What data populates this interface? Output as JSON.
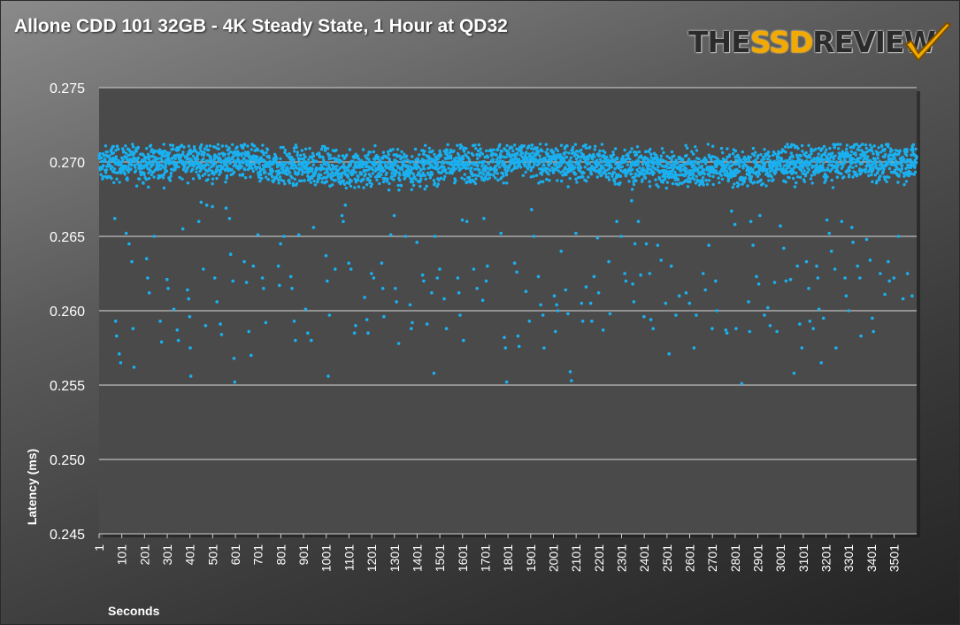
{
  "title": "Allone CDD 101 32GB - 4K Steady State, 1 Hour at QD32",
  "logo": {
    "pre": "THE",
    "accent": "SSD",
    "post": "REVIEW"
  },
  "colors": {
    "points": "#1ab0f0",
    "plot_bg": "#4a4a4a",
    "grid": "#bdbdbd"
  },
  "chart_data": {
    "type": "scatter",
    "xlabel": "Seconds",
    "ylabel": "Latency (ms)",
    "xlim": [
      1,
      3600
    ],
    "ylim": [
      0.245,
      0.275
    ],
    "grid": true,
    "y_ticks": [
      "0.245",
      "0.250",
      "0.255",
      "0.260",
      "0.265",
      "0.270",
      "0.275"
    ],
    "x_tick_labels": [
      "1",
      "101",
      "201",
      "301",
      "401",
      "501",
      "601",
      "701",
      "801",
      "901",
      "1001",
      "1101",
      "1201",
      "1301",
      "1401",
      "1501",
      "1601",
      "1701",
      "1801",
      "1901",
      "2001",
      "2101",
      "2201",
      "2301",
      "2401",
      "2501",
      "2601",
      "2701",
      "2801",
      "2901",
      "3001",
      "3101",
      "3201",
      "3301",
      "3401",
      "3501"
    ],
    "series": [
      {
        "description": "Latency samples per second over one hour",
        "n_points": 3600,
        "main_band": {
          "center": 0.2698,
          "min": 0.2685,
          "max": 0.2712
        },
        "outliers": [
          [
            70,
            0.2662
          ],
          [
            74,
            0.2593
          ],
          [
            78,
            0.2583
          ],
          [
            90,
            0.2571
          ],
          [
            96,
            0.2565
          ],
          [
            120,
            0.2652
          ],
          [
            133,
            0.2645
          ],
          [
            145,
            0.2633
          ],
          [
            150,
            0.2588
          ],
          [
            155,
            0.2562
          ],
          [
            210,
            0.2635
          ],
          [
            215,
            0.2622
          ],
          [
            222,
            0.2612
          ],
          [
            244,
            0.265
          ],
          [
            270,
            0.2593
          ],
          [
            276,
            0.2579
          ],
          [
            300,
            0.2621
          ],
          [
            305,
            0.2615
          ],
          [
            330,
            0.2601
          ],
          [
            345,
            0.2587
          ],
          [
            350,
            0.258
          ],
          [
            370,
            0.2655
          ],
          [
            390,
            0.2614
          ],
          [
            395,
            0.2608
          ],
          [
            400,
            0.2596
          ],
          [
            402,
            0.2575
          ],
          [
            405,
            0.2556
          ],
          [
            440,
            0.266
          ],
          [
            450,
            0.2673
          ],
          [
            460,
            0.2628
          ],
          [
            470,
            0.259
          ],
          [
            475,
            0.2671
          ],
          [
            500,
            0.267
          ],
          [
            510,
            0.2622
          ],
          [
            520,
            0.2606
          ],
          [
            535,
            0.2591
          ],
          [
            540,
            0.2584
          ],
          [
            560,
            0.2669
          ],
          [
            575,
            0.2662
          ],
          [
            580,
            0.2638
          ],
          [
            590,
            0.262
          ],
          [
            595,
            0.2568
          ],
          [
            598,
            0.2552
          ],
          [
            640,
            0.2633
          ],
          [
            650,
            0.2619
          ],
          [
            660,
            0.2586
          ],
          [
            670,
            0.257
          ],
          [
            680,
            0.263
          ],
          [
            700,
            0.2651
          ],
          [
            720,
            0.2622
          ],
          [
            725,
            0.2615
          ],
          [
            735,
            0.2592
          ],
          [
            790,
            0.263
          ],
          [
            795,
            0.2617
          ],
          [
            800,
            0.2645
          ],
          [
            815,
            0.265
          ],
          [
            845,
            0.2623
          ],
          [
            850,
            0.2615
          ],
          [
            860,
            0.2593
          ],
          [
            865,
            0.258
          ],
          [
            880,
            0.2651
          ],
          [
            910,
            0.2601
          ],
          [
            920,
            0.2585
          ],
          [
            935,
            0.258
          ],
          [
            945,
            0.2656
          ],
          [
            1000,
            0.2637
          ],
          [
            1005,
            0.262
          ],
          [
            1010,
            0.2556
          ],
          [
            1015,
            0.2597
          ],
          [
            1040,
            0.2628
          ],
          [
            1070,
            0.2664
          ],
          [
            1076,
            0.266
          ],
          [
            1085,
            0.2671
          ],
          [
            1100,
            0.2632
          ],
          [
            1110,
            0.2628
          ],
          [
            1125,
            0.2585
          ],
          [
            1130,
            0.259
          ],
          [
            1170,
            0.2609
          ],
          [
            1180,
            0.2594
          ],
          [
            1185,
            0.2585
          ],
          [
            1200,
            0.2625
          ],
          [
            1210,
            0.2622
          ],
          [
            1245,
            0.2632
          ],
          [
            1250,
            0.2615
          ],
          [
            1255,
            0.2596
          ],
          [
            1285,
            0.2651
          ],
          [
            1300,
            0.2664
          ],
          [
            1305,
            0.2615
          ],
          [
            1310,
            0.2606
          ],
          [
            1320,
            0.2578
          ],
          [
            1350,
            0.265
          ],
          [
            1370,
            0.2604
          ],
          [
            1375,
            0.2588
          ],
          [
            1380,
            0.2592
          ],
          [
            1400,
            0.2646
          ],
          [
            1425,
            0.2624
          ],
          [
            1430,
            0.262
          ],
          [
            1445,
            0.2591
          ],
          [
            1465,
            0.2612
          ],
          [
            1475,
            0.2558
          ],
          [
            1480,
            0.265
          ],
          [
            1490,
            0.2622
          ],
          [
            1500,
            0.2628
          ],
          [
            1520,
            0.2608
          ],
          [
            1530,
            0.2588
          ],
          [
            1580,
            0.2622
          ],
          [
            1585,
            0.2612
          ],
          [
            1590,
            0.2597
          ],
          [
            1600,
            0.2661
          ],
          [
            1605,
            0.258
          ],
          [
            1620,
            0.266
          ],
          [
            1650,
            0.2628
          ],
          [
            1665,
            0.2615
          ],
          [
            1690,
            0.2607
          ],
          [
            1695,
            0.2662
          ],
          [
            1705,
            0.262
          ],
          [
            1710,
            0.263
          ],
          [
            1770,
            0.2652
          ],
          [
            1785,
            0.2582
          ],
          [
            1790,
            0.2575
          ],
          [
            1795,
            0.2552
          ],
          [
            1830,
            0.2632
          ],
          [
            1840,
            0.2626
          ],
          [
            1845,
            0.2583
          ],
          [
            1850,
            0.2576
          ],
          [
            1880,
            0.2613
          ],
          [
            1895,
            0.2593
          ],
          [
            1905,
            0.2668
          ],
          [
            1915,
            0.265
          ],
          [
            1935,
            0.2623
          ],
          [
            1945,
            0.2604
          ],
          [
            1955,
            0.2597
          ],
          [
            1960,
            0.2575
          ],
          [
            2005,
            0.261
          ],
          [
            2010,
            0.2586
          ],
          [
            2015,
            0.2604
          ],
          [
            2020,
            0.26
          ],
          [
            2035,
            0.264
          ],
          [
            2055,
            0.2614
          ],
          [
            2065,
            0.2598
          ],
          [
            2075,
            0.2559
          ],
          [
            2080,
            0.2553
          ],
          [
            2100,
            0.2652
          ],
          [
            2125,
            0.2605
          ],
          [
            2130,
            0.2593
          ],
          [
            2145,
            0.2616
          ],
          [
            2165,
            0.2605
          ],
          [
            2170,
            0.2593
          ],
          [
            2180,
            0.2623
          ],
          [
            2195,
            0.2649
          ],
          [
            2200,
            0.2612
          ],
          [
            2220,
            0.2587
          ],
          [
            2245,
            0.2633
          ],
          [
            2250,
            0.2598
          ],
          [
            2280,
            0.266
          ],
          [
            2300,
            0.265
          ],
          [
            2315,
            0.2625
          ],
          [
            2320,
            0.262
          ],
          [
            2345,
            0.2674
          ],
          [
            2350,
            0.2618
          ],
          [
            2355,
            0.2606
          ],
          [
            2360,
            0.2645
          ],
          [
            2375,
            0.266
          ],
          [
            2385,
            0.2624
          ],
          [
            2400,
            0.2596
          ],
          [
            2410,
            0.2645
          ],
          [
            2425,
            0.2625
          ],
          [
            2430,
            0.2594
          ],
          [
            2440,
            0.2588
          ],
          [
            2460,
            0.2644
          ],
          [
            2475,
            0.2634
          ],
          [
            2495,
            0.2605
          ],
          [
            2510,
            0.2571
          ],
          [
            2520,
            0.263
          ],
          [
            2540,
            0.2597
          ],
          [
            2555,
            0.261
          ],
          [
            2585,
            0.2612
          ],
          [
            2600,
            0.2605
          ],
          [
            2620,
            0.2575
          ],
          [
            2630,
            0.2597
          ],
          [
            2660,
            0.2625
          ],
          [
            2670,
            0.2614
          ],
          [
            2685,
            0.2644
          ],
          [
            2700,
            0.2588
          ],
          [
            2715,
            0.262
          ],
          [
            2720,
            0.26
          ],
          [
            2760,
            0.2587
          ],
          [
            2765,
            0.2585
          ],
          [
            2785,
            0.2667
          ],
          [
            2800,
            0.2658
          ],
          [
            2805,
            0.2588
          ],
          [
            2830,
            0.2551
          ],
          [
            2860,
            0.2606
          ],
          [
            2865,
            0.2586
          ],
          [
            2870,
            0.266
          ],
          [
            2880,
            0.2644
          ],
          [
            2895,
            0.2623
          ],
          [
            2905,
            0.2618
          ],
          [
            2910,
            0.2664
          ],
          [
            2930,
            0.2597
          ],
          [
            2945,
            0.2602
          ],
          [
            2955,
            0.259
          ],
          [
            2975,
            0.2619
          ],
          [
            2985,
            0.2586
          ],
          [
            3000,
            0.2657
          ],
          [
            3015,
            0.2642
          ],
          [
            3025,
            0.262
          ],
          [
            3045,
            0.2621
          ],
          [
            3060,
            0.2558
          ],
          [
            3075,
            0.263
          ],
          [
            3085,
            0.2591
          ],
          [
            3095,
            0.2575
          ],
          [
            3115,
            0.2633
          ],
          [
            3125,
            0.2615
          ],
          [
            3130,
            0.2593
          ],
          [
            3145,
            0.2588
          ],
          [
            3160,
            0.263
          ],
          [
            3165,
            0.2622
          ],
          [
            3170,
            0.2601
          ],
          [
            3180,
            0.2565
          ],
          [
            3190,
            0.2595
          ],
          [
            3205,
            0.2661
          ],
          [
            3215,
            0.2652
          ],
          [
            3225,
            0.264
          ],
          [
            3240,
            0.2628
          ],
          [
            3245,
            0.2575
          ],
          [
            3270,
            0.266
          ],
          [
            3285,
            0.2622
          ],
          [
            3290,
            0.261
          ],
          [
            3300,
            0.26
          ],
          [
            3315,
            0.2656
          ],
          [
            3320,
            0.2646
          ],
          [
            3340,
            0.263
          ],
          [
            3350,
            0.2622
          ],
          [
            3355,
            0.2583
          ],
          [
            3380,
            0.2648
          ],
          [
            3395,
            0.2634
          ],
          [
            3405,
            0.2595
          ],
          [
            3410,
            0.2586
          ],
          [
            3440,
            0.2625
          ],
          [
            3460,
            0.2611
          ],
          [
            3475,
            0.2633
          ],
          [
            3480,
            0.262
          ],
          [
            3500,
            0.2622
          ],
          [
            3520,
            0.265
          ],
          [
            3540,
            0.2608
          ],
          [
            3560,
            0.2625
          ],
          [
            3580,
            0.261
          ]
        ]
      }
    ]
  }
}
